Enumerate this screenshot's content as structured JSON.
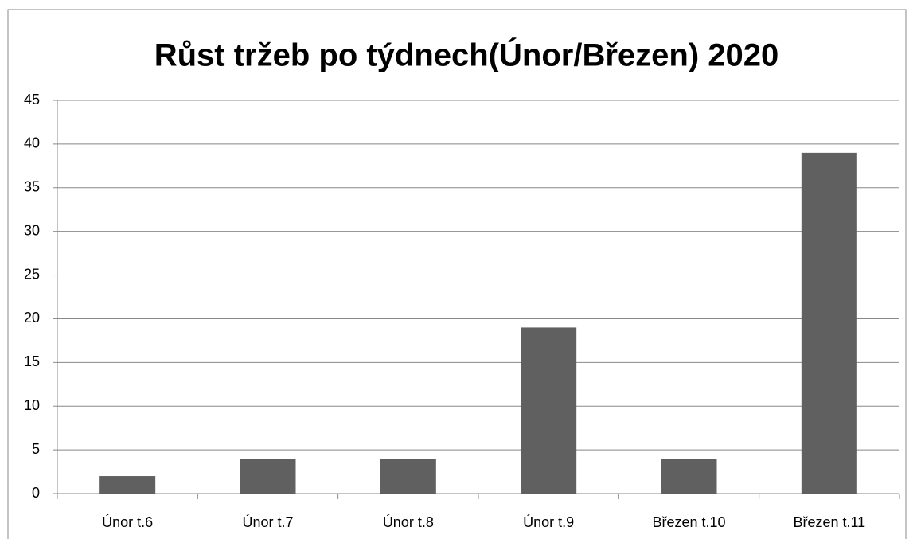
{
  "chart_data": {
    "type": "bar",
    "title": "Růst tržeb po týdnech(Únor/Březen) 2020",
    "categories": [
      "Únor t.6",
      "Únor t.7",
      "Únor t.8",
      "Únor t.9",
      "Březen t.10",
      "Březen t.11"
    ],
    "values": [
      2,
      4,
      4,
      19,
      4,
      39
    ],
    "color": "#606060",
    "ylim": [
      0,
      45
    ],
    "yticks": [
      0,
      5,
      10,
      15,
      20,
      25,
      30,
      35,
      40,
      45
    ],
    "grid": true
  }
}
